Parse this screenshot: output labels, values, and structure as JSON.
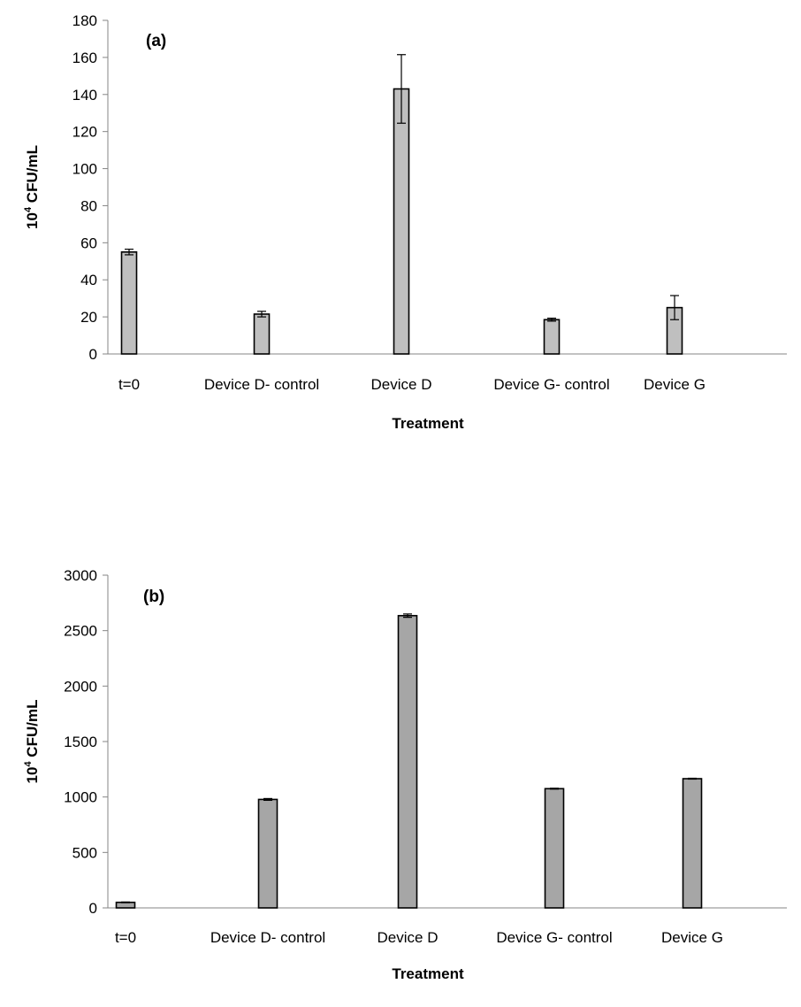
{
  "chart_data": [
    {
      "type": "bar",
      "panel_label": "(a)",
      "categories": [
        "t=0",
        "Device D- control",
        "Device D",
        "Device G- control",
        "Device G"
      ],
      "values": [
        55,
        21.5,
        143,
        18.5,
        25
      ],
      "errors": [
        1.5,
        1.5,
        18.5,
        0.8,
        6.5
      ],
      "yticks": [
        0,
        20,
        40,
        60,
        80,
        100,
        120,
        140,
        160,
        180
      ],
      "ylim": [
        0,
        180
      ],
      "xlabel": "Treatment",
      "ylabel_base": "10",
      "ylabel_sup": "4",
      "ylabel_rest": " CFU/mL",
      "bar_color": "#bfbfbf",
      "grid": false
    },
    {
      "type": "bar",
      "panel_label": "(b)",
      "categories": [
        "t=0",
        "Device D- control",
        "Device D",
        "Device G- control",
        "Device G"
      ],
      "values": [
        50,
        978,
        2635,
        1075,
        1165
      ],
      "errors": [
        3,
        8,
        15,
        4,
        4
      ],
      "yticks": [
        0,
        500,
        1000,
        1500,
        2000,
        2500,
        3000
      ],
      "ylim": [
        0,
        3000
      ],
      "xlabel": "Treatment",
      "ylabel_base": "10",
      "ylabel_sup": "4",
      "ylabel_rest": " CFU/mL",
      "bar_color": "#a6a6a6",
      "grid": false
    }
  ]
}
